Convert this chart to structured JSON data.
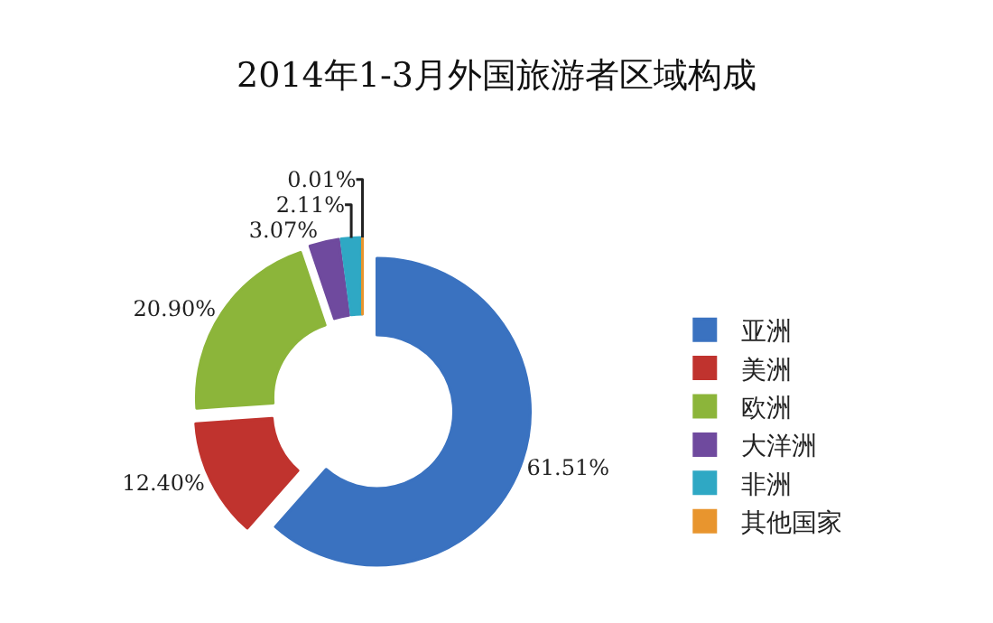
{
  "chart_data": {
    "type": "donut",
    "title": "2014年1-3月外国旅游者区域构成",
    "categories": [
      "亚洲",
      "美洲",
      "欧洲",
      "大洋洲",
      "非洲",
      "其他国家"
    ],
    "values": [
      61.51,
      12.4,
      20.9,
      3.07,
      2.11,
      0.01
    ],
    "colors": [
      "#3a72c0",
      "#c0332e",
      "#8cb53a",
      "#6f4a9e",
      "#2fa8c4",
      "#e8952e"
    ],
    "value_labels": [
      "61.51%",
      "12.40%",
      "20.90%",
      "3.07%",
      "2.11%",
      "0.01%"
    ],
    "legend": "right"
  }
}
